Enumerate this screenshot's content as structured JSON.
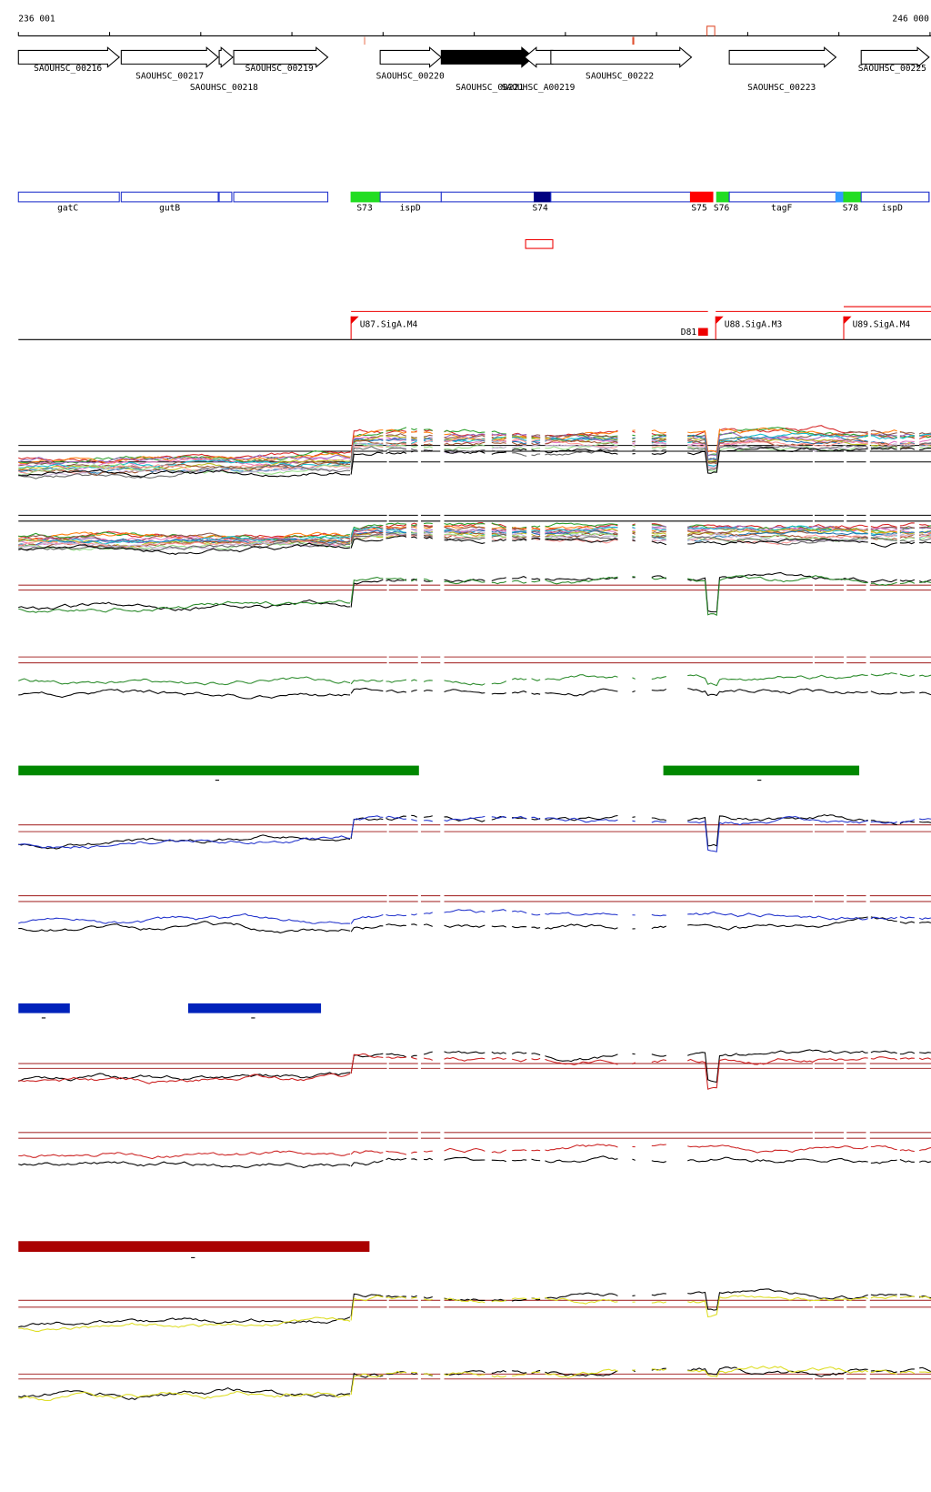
{
  "ruler": {
    "start": "236 001",
    "end": "246 000"
  },
  "genes": [
    "SAOUHSC_00216",
    "SAOUHSC_00217",
    "SAOUHSC_00218",
    "SAOUHSC_00219",
    "SAOUHSC_00220",
    "SAOUHSC_00221",
    "SAOUHSC_A00219",
    "SAOUHSC_00222",
    "SAOUHSC_00223",
    "SAOUHSC_00225"
  ],
  "features": [
    "gatC",
    "gutB",
    "S73",
    "ispD",
    "S74",
    "S75",
    "S76",
    "tagF",
    "S78",
    "ispD"
  ],
  "promoters": [
    "U87.SigA.M4",
    "U88.SigA.M3",
    "U89.SigA.M4"
  ],
  "terminator": "D81"
}
